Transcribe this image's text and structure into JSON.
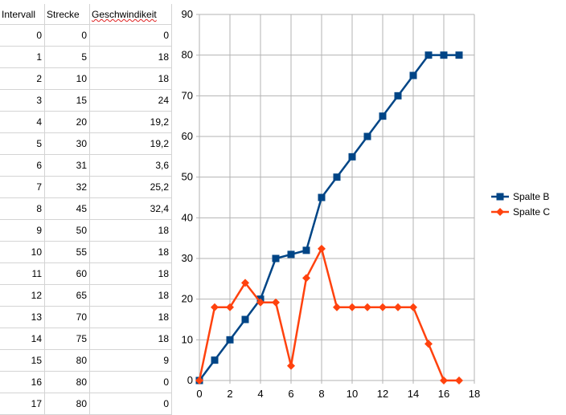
{
  "sheet": {
    "headers": [
      "Intervall",
      "Strecke",
      "Geschwindikeit"
    ],
    "rows": [
      [
        "0",
        "0",
        "0"
      ],
      [
        "1",
        "5",
        "18"
      ],
      [
        "2",
        "10",
        "18"
      ],
      [
        "3",
        "15",
        "24"
      ],
      [
        "4",
        "20",
        "19,2"
      ],
      [
        "5",
        "30",
        "19,2"
      ],
      [
        "6",
        "31",
        "3,6"
      ],
      [
        "7",
        "32",
        "25,2"
      ],
      [
        "8",
        "45",
        "32,4"
      ],
      [
        "9",
        "50",
        "18"
      ],
      [
        "10",
        "55",
        "18"
      ],
      [
        "11",
        "60",
        "18"
      ],
      [
        "12",
        "65",
        "18"
      ],
      [
        "13",
        "70",
        "18"
      ],
      [
        "14",
        "75",
        "18"
      ],
      [
        "15",
        "80",
        "9"
      ],
      [
        "16",
        "80",
        "0"
      ],
      [
        "17",
        "80",
        "0"
      ]
    ]
  },
  "chart_data": {
    "type": "line",
    "x": [
      0,
      1,
      2,
      3,
      4,
      5,
      6,
      7,
      8,
      9,
      10,
      11,
      12,
      13,
      14,
      15,
      16,
      17
    ],
    "series": [
      {
        "name": "Spalte B",
        "color": "#004586",
        "marker": "square",
        "values": [
          0,
          5,
          10,
          15,
          20,
          30,
          31,
          32,
          45,
          50,
          55,
          60,
          65,
          70,
          75,
          80,
          80,
          80
        ]
      },
      {
        "name": "Spalte C",
        "color": "#ff420e",
        "marker": "diamond",
        "values": [
          0,
          18,
          18,
          24,
          19.2,
          19.2,
          3.6,
          25.2,
          32.4,
          18,
          18,
          18,
          18,
          18,
          18,
          9,
          0,
          0
        ]
      }
    ],
    "xlim": [
      0,
      18
    ],
    "ylim": [
      0,
      90
    ],
    "xticks": [
      "0",
      "2",
      "4",
      "6",
      "8",
      "10",
      "12",
      "14",
      "16",
      "18"
    ],
    "yticks": [
      "0",
      "10",
      "20",
      "30",
      "40",
      "50",
      "60",
      "70",
      "80",
      "90"
    ],
    "grid": true,
    "legend": "right"
  }
}
